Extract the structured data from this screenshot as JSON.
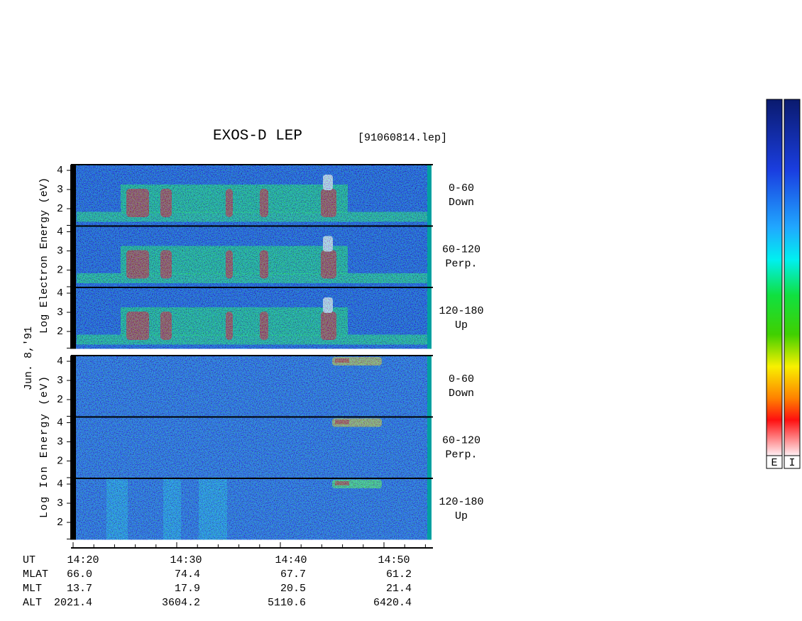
{
  "title": "EXOS-D LEP",
  "file": "[91060814.lep]",
  "date": "Jun. 8,'91",
  "electron": {
    "axis_label": "Log Electron Energy (eV)",
    "panels": [
      {
        "pitch": "0-60",
        "direction": "Down"
      },
      {
        "pitch": "60-120",
        "direction": "Perp."
      },
      {
        "pitch": "120-180",
        "direction": "Up"
      }
    ]
  },
  "ion": {
    "axis_label": "Log Ion Energy (eV)",
    "panels": [
      {
        "pitch": "0-60",
        "direction": "Down"
      },
      {
        "pitch": "60-120",
        "direction": "Perp."
      },
      {
        "pitch": "120-180",
        "direction": "Up"
      }
    ]
  },
  "yticks": [
    2,
    3,
    4
  ],
  "orbit": {
    "rows": [
      [
        "UT",
        "14:20",
        "14:30",
        "14:40",
        "14:50"
      ],
      [
        "MLAT",
        "66.0",
        "74.4",
        "67.7",
        "61.2"
      ],
      [
        "MLT",
        "13.7",
        "17.9",
        "20.5",
        "21.4"
      ],
      [
        "ALT",
        "2021.4",
        "3604.2",
        "5110.6",
        "6420.4"
      ]
    ]
  },
  "colorbars": [
    "E",
    "I"
  ]
}
